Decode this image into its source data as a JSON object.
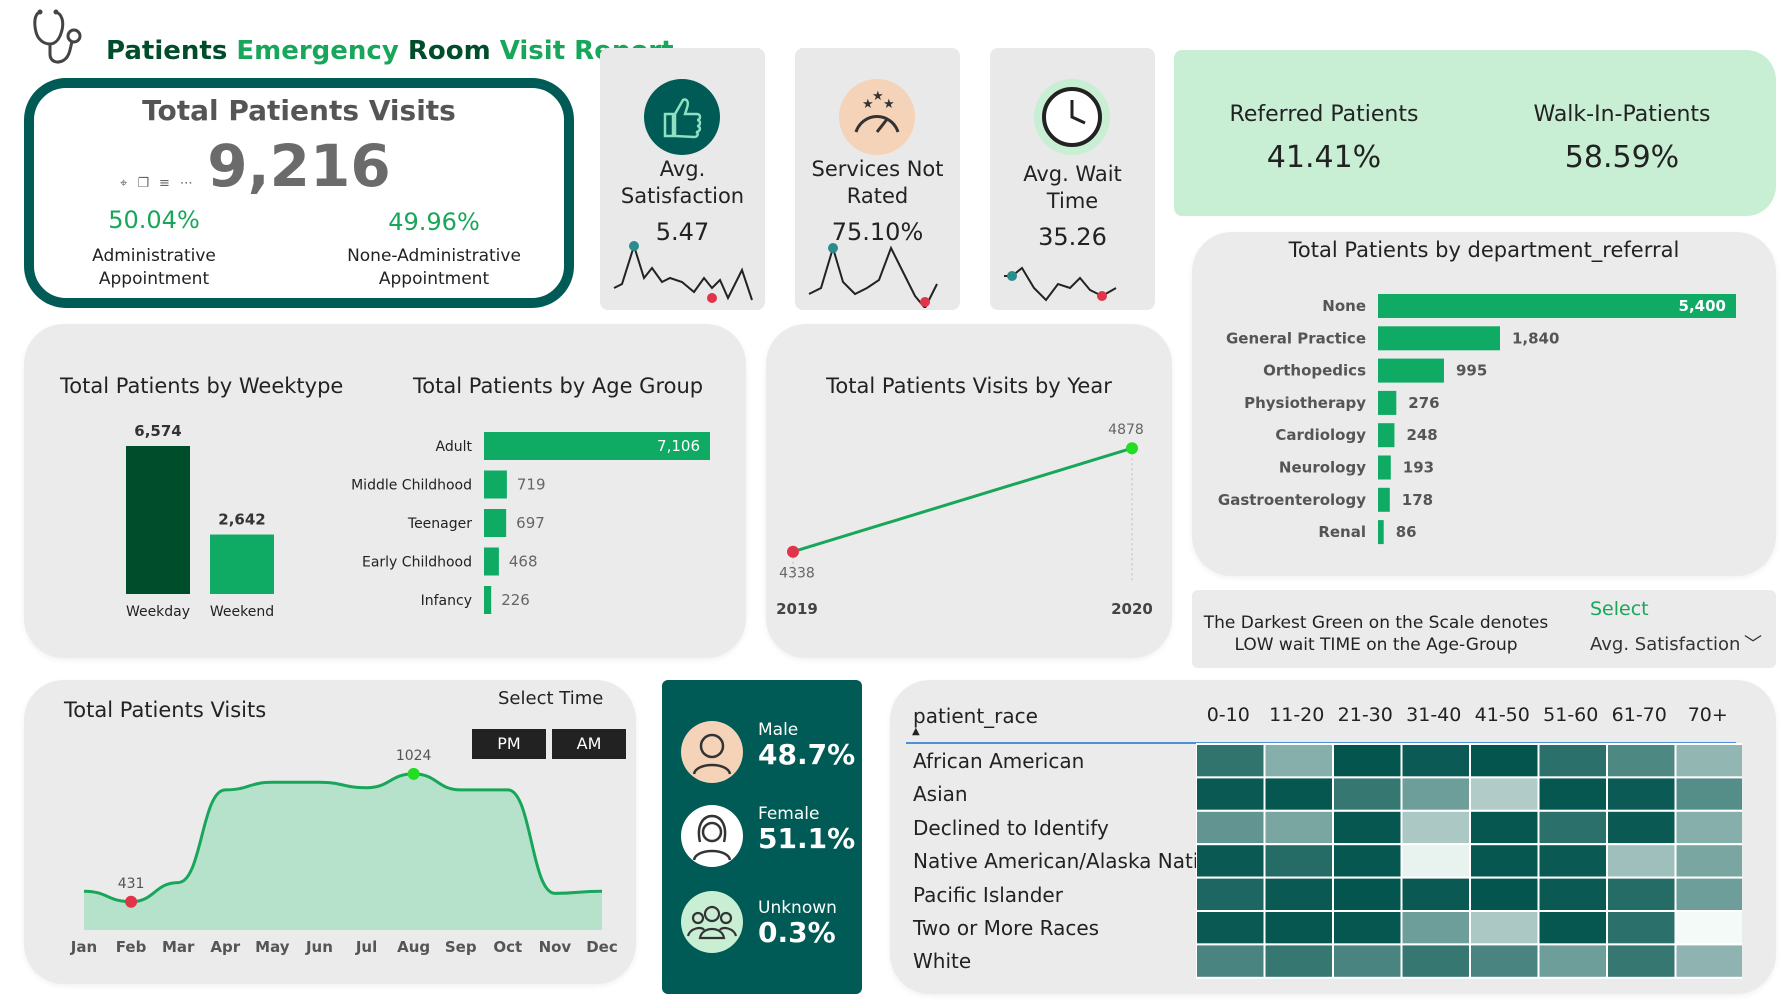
{
  "header": {
    "title_parts": [
      "Patients ",
      "Emergency",
      " Room ",
      "Visit Report"
    ]
  },
  "total_visits": {
    "title": "Total Patients Visits",
    "value": "9,216",
    "admin_pct": "50.04%",
    "admin_label_1": "Administrative",
    "admin_label_2": "Appointment",
    "nonadmin_pct": "49.96%",
    "nonadmin_label_1": "None-Administrative",
    "nonadmin_label_2": "Appointment"
  },
  "kpis": {
    "satisfaction": {
      "label_1": "Avg.",
      "label_2": "Satisfaction",
      "value": "5.47"
    },
    "not_rated": {
      "label_1": "Services Not",
      "label_2": "Rated",
      "value": "75.10%"
    },
    "wait_time": {
      "label_1": "Avg. Wait",
      "label_2": "Time",
      "value": "35.26"
    }
  },
  "referral_split": {
    "referred_label": "Referred Patients",
    "referred_value": "41.41%",
    "walkin_label": "Walk-In-Patients",
    "walkin_value": "58.59%"
  },
  "note": {
    "line_1": "The Darkest Green on the Scale denotes",
    "line_2": "LOW wait TIME on the Age-Group"
  },
  "select": {
    "label": "Select",
    "value": "Avg. Satisfaction"
  },
  "select_time": {
    "label": "Select Time",
    "pm": "PM",
    "am": "AM"
  },
  "gender": {
    "male_label": "Male",
    "male_value": "48.7%",
    "female_label": "Female",
    "female_value": "51.1%",
    "unknown_label": "Unknown",
    "unknown_value": "0.3%"
  },
  "colors": {
    "bright_green": "#18a65a",
    "bar_green": "#0faa64",
    "dark_green": "#004d2c",
    "teal_dark": "#005a55",
    "card_bg": "#ebebeb",
    "mint": "#c8eed4",
    "red_marker": "#e0344a"
  },
  "chart_data": [
    {
      "type": "bar",
      "id": "weektype",
      "title": "Total Patients by Weektype",
      "categories": [
        "Weekday",
        "Weekend"
      ],
      "values": [
        6574,
        2642
      ],
      "value_labels": [
        "6,574",
        "2,642"
      ]
    },
    {
      "type": "bar",
      "id": "age_group",
      "orientation": "horizontal",
      "title": "Total Patients by Age Group",
      "categories": [
        "Adult",
        "Middle Childhood",
        "Teenager",
        "Early Childhood",
        "Infancy"
      ],
      "values": [
        7106,
        719,
        697,
        468,
        226
      ],
      "value_labels": [
        "7,106",
        "719",
        "697",
        "468",
        "226"
      ]
    },
    {
      "type": "line",
      "id": "by_year",
      "title": "Total Patients Visits by Year",
      "x": [
        "2019",
        "2020"
      ],
      "values": [
        4338,
        4878
      ],
      "value_labels": [
        "4338",
        "4878"
      ]
    },
    {
      "type": "bar",
      "id": "department",
      "orientation": "horizontal",
      "title": "Total Patients by department_referral",
      "categories": [
        "None",
        "General Practice",
        "Orthopedics",
        "Physiotherapy",
        "Cardiology",
        "Neurology",
        "Gastroenterology",
        "Renal"
      ],
      "values": [
        5400,
        1840,
        995,
        276,
        248,
        193,
        178,
        86
      ],
      "value_labels": [
        "5,400",
        "1,840",
        "995",
        "276",
        "248",
        "193",
        "178",
        "86"
      ]
    },
    {
      "type": "area",
      "id": "monthly",
      "title": "Total Patients Visits",
      "x": [
        "Jan",
        "Feb",
        "Mar",
        "Apr",
        "May",
        "Jun",
        "Jul",
        "Aug",
        "Sep",
        "Oct",
        "Nov",
        "Dec"
      ],
      "values": [
        480,
        431,
        520,
        950,
        985,
        985,
        960,
        1024,
        950,
        950,
        470,
        480
      ],
      "min_label": "431",
      "max_label": "1024"
    },
    {
      "type": "heatmap",
      "id": "race_age",
      "title": "patient_race",
      "columns": [
        "0-10",
        "11-20",
        "21-30",
        "31-40",
        "41-50",
        "51-60",
        "61-70",
        "70+"
      ],
      "rows": [
        "African American",
        "Asian",
        "Declined to Identify",
        "Native American/Alaska Native",
        "Pacific Islander",
        "Two or More Races",
        "White"
      ],
      "values": [
        [
          0.8,
          0.45,
          0.98,
          0.95,
          0.98,
          0.82,
          0.68,
          0.4
        ],
        [
          0.96,
          0.97,
          0.78,
          0.55,
          0.28,
          0.97,
          0.95,
          0.65
        ],
        [
          0.6,
          0.5,
          0.97,
          0.3,
          0.97,
          0.82,
          0.96,
          0.45
        ],
        [
          0.96,
          0.85,
          0.97,
          0.05,
          0.97,
          0.96,
          0.35,
          0.5
        ],
        [
          0.88,
          0.96,
          0.98,
          0.96,
          0.98,
          0.96,
          0.85,
          0.55
        ],
        [
          0.96,
          0.97,
          0.97,
          0.55,
          0.3,
          0.97,
          0.82,
          0.0
        ],
        [
          0.7,
          0.78,
          0.7,
          0.78,
          0.7,
          0.55,
          0.78,
          0.42
        ]
      ]
    }
  ]
}
